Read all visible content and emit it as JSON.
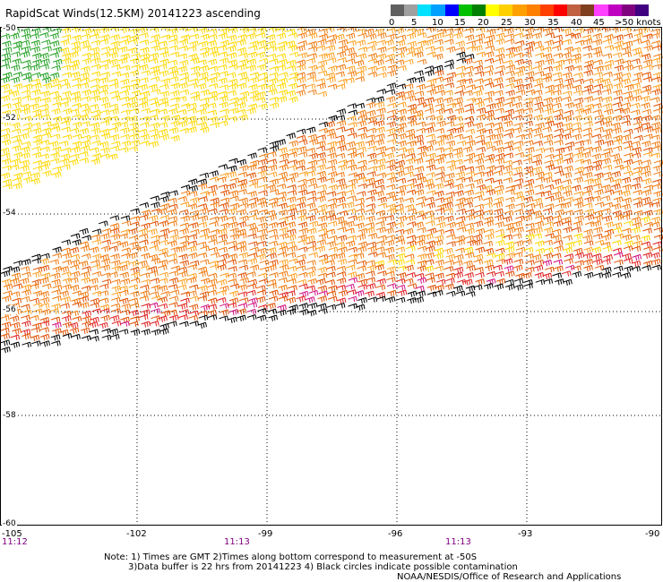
{
  "header": {
    "title": "RapidScat Winds(12.5KM) 20141223 ascending"
  },
  "legend": {
    "colors": [
      "#606060",
      "#a0a0a0",
      "#00e0ff",
      "#00a0ff",
      "#0000ff",
      "#00c000",
      "#008000",
      "#ffff00",
      "#ffd000",
      "#ffa000",
      "#ff8000",
      "#ff4000",
      "#ff0000",
      "#c06040",
      "#804020",
      "#ff40ff",
      "#c000c0",
      "#800080",
      "#400080"
    ],
    "labels": [
      "0",
      "5",
      "10",
      "15",
      "20",
      "25",
      "30",
      "35",
      "40",
      "45",
      ">50 knots"
    ]
  },
  "map": {
    "lat_labels": [
      "-50",
      "-52",
      "-54",
      "-56",
      "-58",
      "-60"
    ],
    "lon_labels": [
      "-105",
      "-102",
      "-99",
      "-96",
      "-93",
      "-90"
    ],
    "time_labels": [
      "11:12",
      "11:13",
      "11:13"
    ]
  },
  "notes": {
    "line1": "Note: 1) Times are GMT 2)Times along bottom correspond to measurement at -50S",
    "line2": "3)Data buffer is 22 hrs from 20141223 4) Black circles indicate possible contamination",
    "line3": "NOAA/NESDIS/Office of Research and Applications"
  },
  "wind_colors": {
    "black": "#000000",
    "green": "#20a020",
    "yellow": "#ffd800",
    "orange_light": "#ffa020",
    "orange": "#f07a10",
    "orange_dark": "#e05000",
    "red": "#e02020",
    "magenta": "#d01080"
  }
}
